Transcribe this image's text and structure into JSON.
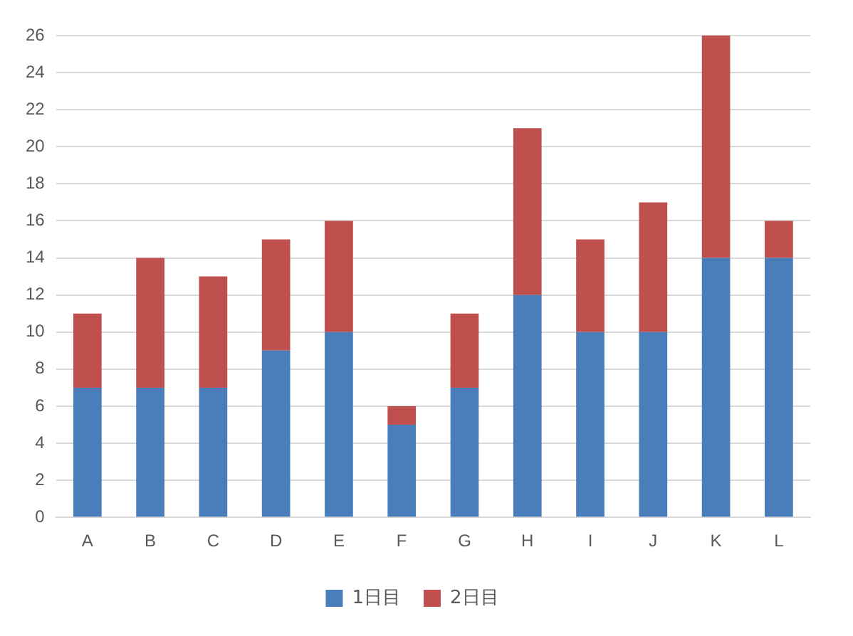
{
  "chart_data": {
    "type": "bar",
    "stacked": true,
    "categories": [
      "A",
      "B",
      "C",
      "D",
      "E",
      "F",
      "G",
      "H",
      "I",
      "J",
      "K",
      "L"
    ],
    "series": [
      {
        "name": "1日目",
        "color": "#4a7ebb",
        "values": [
          7,
          7,
          7,
          9,
          10,
          5,
          7,
          12,
          10,
          10,
          14,
          14
        ]
      },
      {
        "name": "2日目",
        "color": "#c0504d",
        "values": [
          4,
          7,
          6,
          6,
          6,
          1,
          4,
          9,
          5,
          7,
          12,
          2
        ]
      }
    ],
    "ylim": [
      0,
      26
    ],
    "yticks": [
      0,
      2,
      4,
      6,
      8,
      10,
      12,
      14,
      16,
      18,
      20,
      22,
      24,
      26
    ],
    "grid": "y",
    "legend": "bottom"
  }
}
